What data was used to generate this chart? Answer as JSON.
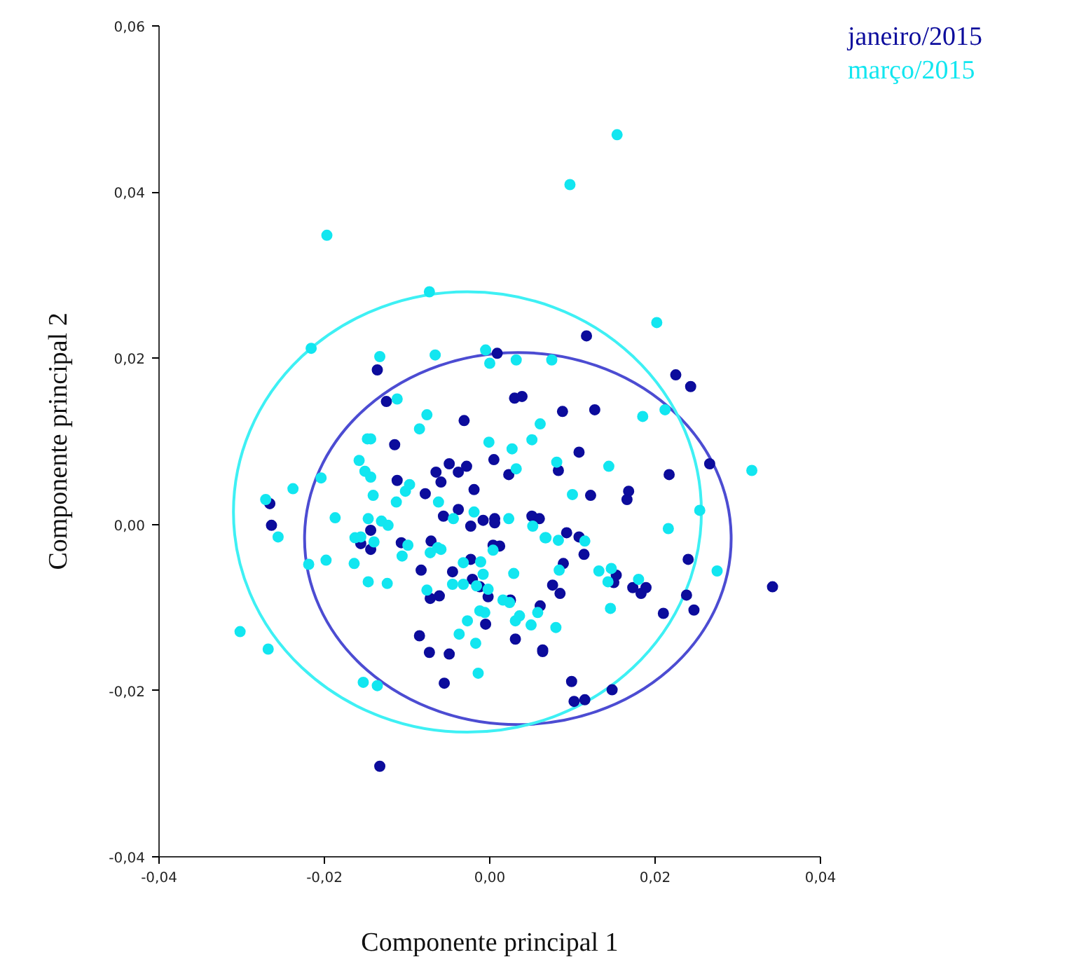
{
  "chart_data": {
    "type": "scatter",
    "xlabel": "Componente principal 1",
    "ylabel": "Componente principal 2",
    "xlim": [
      -0.04,
      0.04
    ],
    "ylim": [
      -0.04,
      0.06
    ],
    "xticks": [
      {
        "value": -0.04,
        "label": "-0,04"
      },
      {
        "value": -0.02,
        "label": "-0,02"
      },
      {
        "value": 0,
        "label": "0,00"
      },
      {
        "value": 0.02,
        "label": "0,02"
      },
      {
        "value": 0.04,
        "label": "0,04"
      }
    ],
    "yticks": [
      {
        "value": -0.04,
        "label": "-0,04"
      },
      {
        "value": -0.02,
        "label": "-0,02"
      },
      {
        "value": 0,
        "label": "0,00"
      },
      {
        "value": 0.02,
        "label": "0,02"
      },
      {
        "value": 0.04,
        "label": "0,04"
      },
      {
        "value": 0.06,
        "label": "0,06"
      }
    ],
    "grid": false,
    "legend": "top right",
    "marker": "circle",
    "series": [
      {
        "name": "janeiro/2015",
        "color": "#0c0c9c",
        "x": [
          0.0009,
          -0.0136,
          -0.0125,
          0.003,
          0.0039,
          -0.0031,
          0.0117,
          0.0225,
          0.0243,
          0.0088,
          0.0127,
          -0.0115,
          -0.0065,
          -0.0049,
          -0.0028,
          -0.0038,
          -0.0059,
          -0.0112,
          -0.0019,
          -0.0078,
          0.0005,
          0.0023,
          -0.0266,
          -0.0264,
          -0.0056,
          -0.0038,
          -0.0023,
          -0.0008,
          0.0006,
          0.0006,
          0.0051,
          0.006,
          -0.0144,
          -0.0156,
          -0.0144,
          -0.0107,
          -0.0071,
          0.0004,
          0.0012,
          -0.0023,
          -0.0083,
          -0.0045,
          -0.0021,
          -0.0012,
          -0.0002,
          -0.0072,
          -0.0061,
          0.0025,
          0.0061,
          -0.0005,
          -0.0085,
          0.0031,
          -0.0073,
          -0.0049,
          0.0064,
          -0.0055,
          -0.0133,
          0.0108,
          0.0266,
          0.0217,
          0.0083,
          0.0122,
          0.0168,
          0.0166,
          0.0093,
          0.0108,
          0.0114,
          0.024,
          0.0089,
          0.0153,
          0.015,
          0.0076,
          0.0085,
          0.0173,
          0.0183,
          0.0189,
          0.0342,
          0.0238,
          0.0247,
          0.021,
          0.0064,
          0.0099,
          0.0148,
          0.0102,
          0.0115
        ],
        "values": [
          0.0206,
          0.0186,
          0.0148,
          0.0152,
          0.0154,
          0.0125,
          0.0227,
          0.018,
          0.0166,
          0.0136,
          0.0138,
          0.0096,
          0.0063,
          0.0073,
          0.007,
          0.0063,
          0.0051,
          0.0053,
          0.0042,
          0.0037,
          0.0078,
          0.006,
          0.0025,
          -0.0001,
          0.001,
          0.0018,
          -0.0002,
          0.0005,
          0.0007,
          0.0002,
          0.001,
          0.0007,
          -0.0007,
          -0.0023,
          -0.003,
          -0.0022,
          -0.002,
          -0.0025,
          -0.0026,
          -0.0042,
          -0.0055,
          -0.0057,
          -0.0066,
          -0.0075,
          -0.0087,
          -0.0089,
          -0.0086,
          -0.0091,
          -0.0098,
          -0.012,
          -0.0134,
          -0.0138,
          -0.0154,
          -0.0156,
          -0.0151,
          -0.0191,
          -0.0291,
          0.0087,
          0.0073,
          0.006,
          0.0065,
          0.0035,
          0.004,
          0.003,
          -0.001,
          -0.0015,
          -0.0036,
          -0.0042,
          -0.0047,
          -0.0061,
          -0.007,
          -0.0073,
          -0.0083,
          -0.0076,
          -0.0083,
          -0.0076,
          -0.0075,
          -0.0085,
          -0.0103,
          -0.0107,
          -0.0153,
          -0.0189,
          -0.0199,
          -0.0213,
          -0.0211
        ]
      },
      {
        "name": "março/2015",
        "color": "#12e6f0",
        "x": [
          -0.0197,
          -0.0073,
          -0.0216,
          -0.0133,
          -0.0066,
          -0.0005,
          0.0,
          0.0032,
          0.0075,
          -0.0112,
          -0.0076,
          0.0154,
          0.0097,
          0.0202,
          0.0212,
          0.0185,
          -0.0085,
          -0.0148,
          -0.0144,
          -0.0158,
          -0.0151,
          -0.0144,
          -0.0204,
          -0.0238,
          -0.0271,
          -0.0256,
          -0.0187,
          -0.0147,
          -0.0131,
          -0.0123,
          -0.0163,
          -0.0156,
          -0.014,
          -0.0141,
          -0.0113,
          -0.0102,
          -0.0097,
          -0.0062,
          -0.0044,
          -0.0019,
          0.0023,
          -0.0001,
          0.0027,
          0.0032,
          0.0051,
          0.0061,
          0.0052,
          0.0067,
          -0.0099,
          -0.0106,
          -0.0072,
          -0.0063,
          -0.0059,
          0.0004,
          -0.0198,
          -0.0219,
          -0.0164,
          -0.0147,
          -0.0124,
          -0.0032,
          -0.0011,
          -0.0008,
          0.0029,
          -0.0076,
          -0.0045,
          -0.0032,
          -0.0016,
          -0.0002,
          0.0016,
          0.0024,
          -0.0012,
          -0.0006,
          -0.0027,
          0.0036,
          0.0031,
          0.005,
          0.0058,
          -0.0037,
          -0.0017,
          -0.0014,
          -0.0302,
          -0.0268,
          -0.0153,
          -0.0136,
          0.0081,
          0.0144,
          0.01,
          0.0317,
          0.0254,
          0.0216,
          0.0068,
          0.0083,
          0.0115,
          0.0084,
          0.0132,
          0.0147,
          0.0143,
          0.018,
          0.0275,
          0.0146,
          0.008
        ],
        "values": [
          0.0348,
          0.028,
          0.0212,
          0.0202,
          0.0204,
          0.021,
          0.0194,
          0.0198,
          0.0198,
          0.0151,
          0.0132,
          0.0469,
          0.0409,
          0.0243,
          0.0138,
          0.013,
          0.0115,
          0.0103,
          0.0103,
          0.0077,
          0.0064,
          0.0057,
          0.0056,
          0.0043,
          0.003,
          -0.0015,
          0.0008,
          0.0007,
          0.0004,
          -0.0001,
          -0.0016,
          -0.0015,
          -0.0021,
          0.0035,
          0.0027,
          0.004,
          0.0048,
          0.0027,
          0.0007,
          0.0015,
          0.0007,
          0.0099,
          0.0091,
          0.0067,
          0.0102,
          0.0121,
          -0.0002,
          -0.0016,
          -0.0025,
          -0.0038,
          -0.0034,
          -0.0028,
          -0.003,
          -0.0031,
          -0.0043,
          -0.0048,
          -0.0047,
          -0.0069,
          -0.0071,
          -0.0046,
          -0.0045,
          -0.006,
          -0.0059,
          -0.0079,
          -0.0072,
          -0.0072,
          -0.0074,
          -0.0078,
          -0.0091,
          -0.0094,
          -0.0104,
          -0.0106,
          -0.0116,
          -0.011,
          -0.0116,
          -0.0121,
          -0.0106,
          -0.0132,
          -0.0143,
          -0.0179,
          -0.0129,
          -0.015,
          -0.019,
          -0.0194,
          0.0075,
          0.007,
          0.0036,
          0.0065,
          0.0017,
          -0.0005,
          -0.0016,
          -0.0019,
          -0.002,
          -0.0055,
          -0.0056,
          -0.0053,
          -0.0069,
          -0.0066,
          -0.0056,
          -0.0101,
          -0.0124
        ]
      }
    ]
  }
}
